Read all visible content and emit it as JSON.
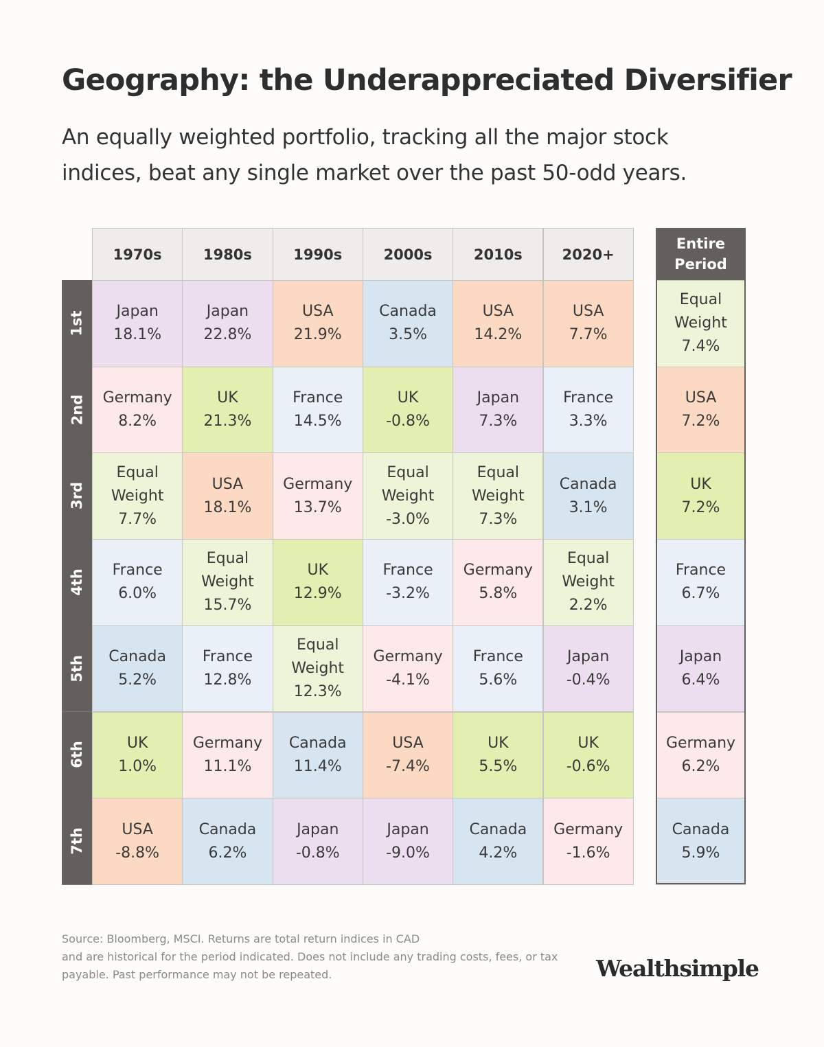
{
  "title": "Geography: the Underappreciated Diversifier",
  "subtitle": [
    "An equally weighted portfolio, tracking all the major stock",
    "indices, beat any single market over the past 50-odd years."
  ],
  "colors": {
    "Japan": "#ecdeef",
    "USA": "#fcd9c2",
    "Canada": "#d7e5f0",
    "Germany": "#fde9e9",
    "UK": "#e3efb0",
    "France": "#eaf0f7",
    "Equal Weight": "#eef4d8",
    "header_dark": "#635f5c",
    "header_light": "#eeedeb"
  },
  "chart_data": {
    "type": "table",
    "columns": [
      "1970s",
      "1980s",
      "1990s",
      "2000s",
      "2010s",
      "2020+"
    ],
    "summary_column": [
      "Entire",
      "Period"
    ],
    "ranks": [
      "1st",
      "2nd",
      "3rd",
      "4th",
      "5th",
      "6th",
      "7th"
    ],
    "cells": [
      [
        [
          "Japan",
          "18.1%"
        ],
        [
          "Germany",
          "8.2%"
        ],
        [
          "Equal Weight",
          "7.7%"
        ],
        [
          "France",
          "6.0%"
        ],
        [
          "Canada",
          "5.2%"
        ],
        [
          "UK",
          "1.0%"
        ],
        [
          "USA",
          "-8.8%"
        ]
      ],
      [
        [
          "Japan",
          "22.8%"
        ],
        [
          "UK",
          "21.3%"
        ],
        [
          "USA",
          "18.1%"
        ],
        [
          "Equal Weight",
          "15.7%"
        ],
        [
          "France",
          "12.8%"
        ],
        [
          "Germany",
          "11.1%"
        ],
        [
          "Canada",
          "6.2%"
        ]
      ],
      [
        [
          "USA",
          "21.9%"
        ],
        [
          "France",
          "14.5%"
        ],
        [
          "Germany",
          "13.7%"
        ],
        [
          "UK",
          "12.9%"
        ],
        [
          "Equal Weight",
          "12.3%"
        ],
        [
          "Canada",
          "11.4%"
        ],
        [
          "Japan",
          "-0.8%"
        ]
      ],
      [
        [
          "Canada",
          "3.5%"
        ],
        [
          "UK",
          "-0.8%"
        ],
        [
          "Equal Weight",
          "-3.0%"
        ],
        [
          "France",
          "-3.2%"
        ],
        [
          "Germany",
          "-4.1%"
        ],
        [
          "USA",
          "-7.4%"
        ],
        [
          "Japan",
          "-9.0%"
        ]
      ],
      [
        [
          "USA",
          "14.2%"
        ],
        [
          "Japan",
          "7.3%"
        ],
        [
          "Equal Weight",
          "7.3%"
        ],
        [
          "Germany",
          "5.8%"
        ],
        [
          "France",
          "5.6%"
        ],
        [
          "UK",
          "5.5%"
        ],
        [
          "Canada",
          "4.2%"
        ]
      ],
      [
        [
          "USA",
          "7.7%"
        ],
        [
          "France",
          "3.3%"
        ],
        [
          "Canada",
          "3.1%"
        ],
        [
          "Equal Weight",
          "2.2%"
        ],
        [
          "Japan",
          "-0.4%"
        ],
        [
          "UK",
          "-0.6%"
        ],
        [
          "Germany",
          "-1.6%"
        ]
      ]
    ],
    "summary": [
      [
        "Equal Weight",
        "7.4%"
      ],
      [
        "USA",
        "7.2%"
      ],
      [
        "UK",
        "7.2%"
      ],
      [
        "France",
        "6.7%"
      ],
      [
        "Japan",
        "6.4%"
      ],
      [
        "Germany",
        "6.2%"
      ],
      [
        "Canada",
        "5.9%"
      ]
    ]
  },
  "footnote": [
    "Source: Bloomberg, MSCI. Returns are total return indices in CAD",
    "and are historical for the period indicated. Does not include any trading costs, fees, or tax",
    "payable. Past performance may not be repeated."
  ],
  "logo": "Wealthsimple"
}
